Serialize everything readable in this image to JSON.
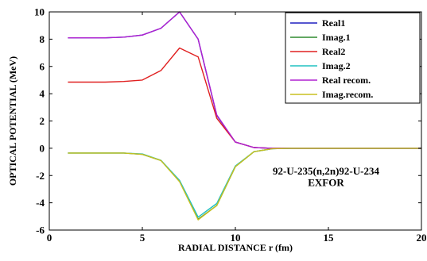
{
  "chart_data": {
    "type": "line",
    "xlabel": "RADIAL DISTANCE r (fm)",
    "ylabel": "OPTICAL POTENTIAL (MeV)",
    "xlim": [
      0,
      20
    ],
    "ylim": [
      -6,
      10
    ],
    "xticks": [
      0,
      5,
      10,
      15,
      20
    ],
    "yticks": [
      -6,
      -4,
      -2,
      0,
      2,
      4,
      6,
      8,
      10
    ],
    "grid": false,
    "legend_position": "top-right",
    "annotations": [
      "92-U-235(n,2n)92-U-234",
      "EXFOR"
    ],
    "x": [
      1,
      2,
      3,
      4,
      5,
      6,
      7,
      8,
      9,
      10,
      11,
      12,
      13,
      14,
      15,
      16,
      17,
      18,
      19,
      20
    ],
    "series": [
      {
        "name": "Real1",
        "color": "#1f1fbf",
        "values": [
          8.1,
          8.1,
          8.1,
          8.15,
          8.3,
          8.8,
          10.0,
          8.0,
          2.4,
          0.45,
          0.05,
          0.0,
          0.0,
          0.0,
          0.0,
          0.0,
          0.0,
          0.0,
          0.0,
          0.0
        ]
      },
      {
        "name": "Imag.1",
        "color": "#2e8b2e",
        "values": [
          -0.35,
          -0.35,
          -0.35,
          -0.35,
          -0.45,
          -0.9,
          -2.4,
          -5.2,
          -4.2,
          -1.35,
          -0.25,
          -0.03,
          0.0,
          0.0,
          0.0,
          0.0,
          0.0,
          0.0,
          0.0,
          0.0
        ]
      },
      {
        "name": "Real2",
        "color": "#e02020",
        "values": [
          4.85,
          4.85,
          4.85,
          4.9,
          5.0,
          5.7,
          7.35,
          6.7,
          2.2,
          0.45,
          0.05,
          0.0,
          0.0,
          0.0,
          0.0,
          0.0,
          0.0,
          0.0,
          0.0,
          0.0
        ]
      },
      {
        "name": "Imag.2",
        "color": "#20c0c0",
        "values": [
          -0.35,
          -0.35,
          -0.35,
          -0.35,
          -0.42,
          -0.88,
          -2.35,
          -5.05,
          -4.05,
          -1.3,
          -0.25,
          -0.03,
          0.0,
          0.0,
          0.0,
          0.0,
          0.0,
          0.0,
          0.0,
          0.0
        ]
      },
      {
        "name": "Real recom.",
        "color": "#b020d0",
        "values": [
          8.1,
          8.1,
          8.1,
          8.15,
          8.3,
          8.8,
          10.0,
          8.0,
          2.45,
          0.45,
          0.05,
          0.0,
          0.0,
          0.0,
          0.0,
          0.0,
          0.0,
          0.0,
          0.0,
          0.0
        ]
      },
      {
        "name": "Imag.recom.",
        "color": "#c8c020",
        "values": [
          -0.35,
          -0.35,
          -0.35,
          -0.35,
          -0.45,
          -0.9,
          -2.45,
          -5.25,
          -4.2,
          -1.35,
          -0.25,
          -0.03,
          0.0,
          0.0,
          0.0,
          0.0,
          0.0,
          0.0,
          0.0,
          0.0
        ]
      }
    ]
  }
}
